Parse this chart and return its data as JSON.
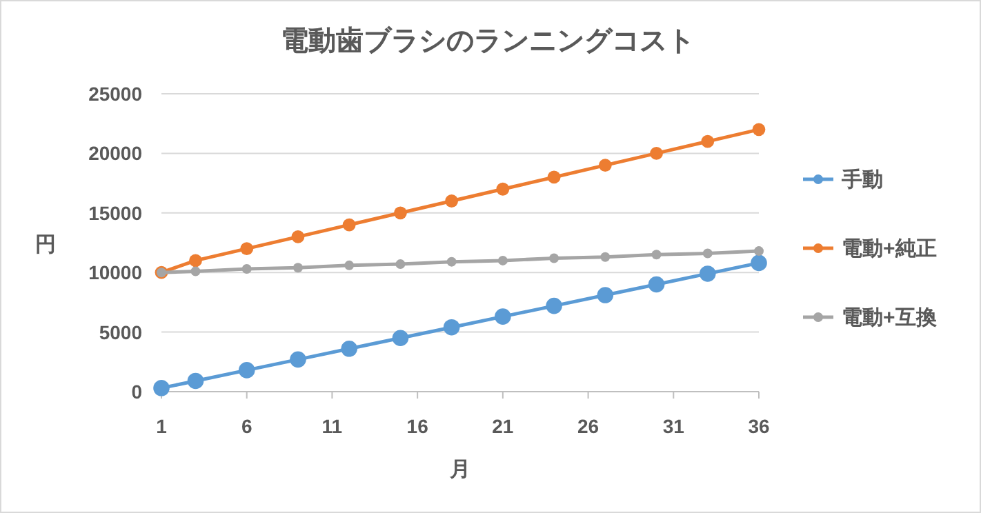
{
  "chart_data": {
    "type": "line",
    "title": "電動歯ブラシのランニングコスト",
    "xlabel": "月",
    "ylabel": "円",
    "x": [
      1,
      3,
      6,
      9,
      12,
      15,
      18,
      21,
      24,
      27,
      30,
      33,
      36
    ],
    "series": [
      {
        "name": "手動",
        "color": "#5b9bd5",
        "values": [
          300,
          900,
          1800,
          2700,
          3600,
          4500,
          5400,
          6300,
          7200,
          8100,
          9000,
          9900,
          10800
        ]
      },
      {
        "name": "電動+純正",
        "color": "#ed7d31",
        "values": [
          10000,
          11000,
          12000,
          13000,
          14000,
          15000,
          16000,
          17000,
          18000,
          19000,
          20000,
          21000,
          22000
        ]
      },
      {
        "name": "電動+互換",
        "color": "#a5a5a5",
        "values": [
          10000,
          10100,
          10300,
          10400,
          10600,
          10700,
          10900,
          11000,
          11200,
          11300,
          11500,
          11600,
          11800
        ]
      }
    ],
    "xlim": [
      1,
      36
    ],
    "xticks": [
      1,
      6,
      11,
      16,
      21,
      26,
      31,
      36
    ],
    "ylim": [
      0,
      25000
    ],
    "yticks": [
      0,
      5000,
      10000,
      15000,
      20000,
      25000
    ],
    "grid": "y",
    "legend": "right",
    "marker": "circle",
    "line_style": "solid"
  }
}
